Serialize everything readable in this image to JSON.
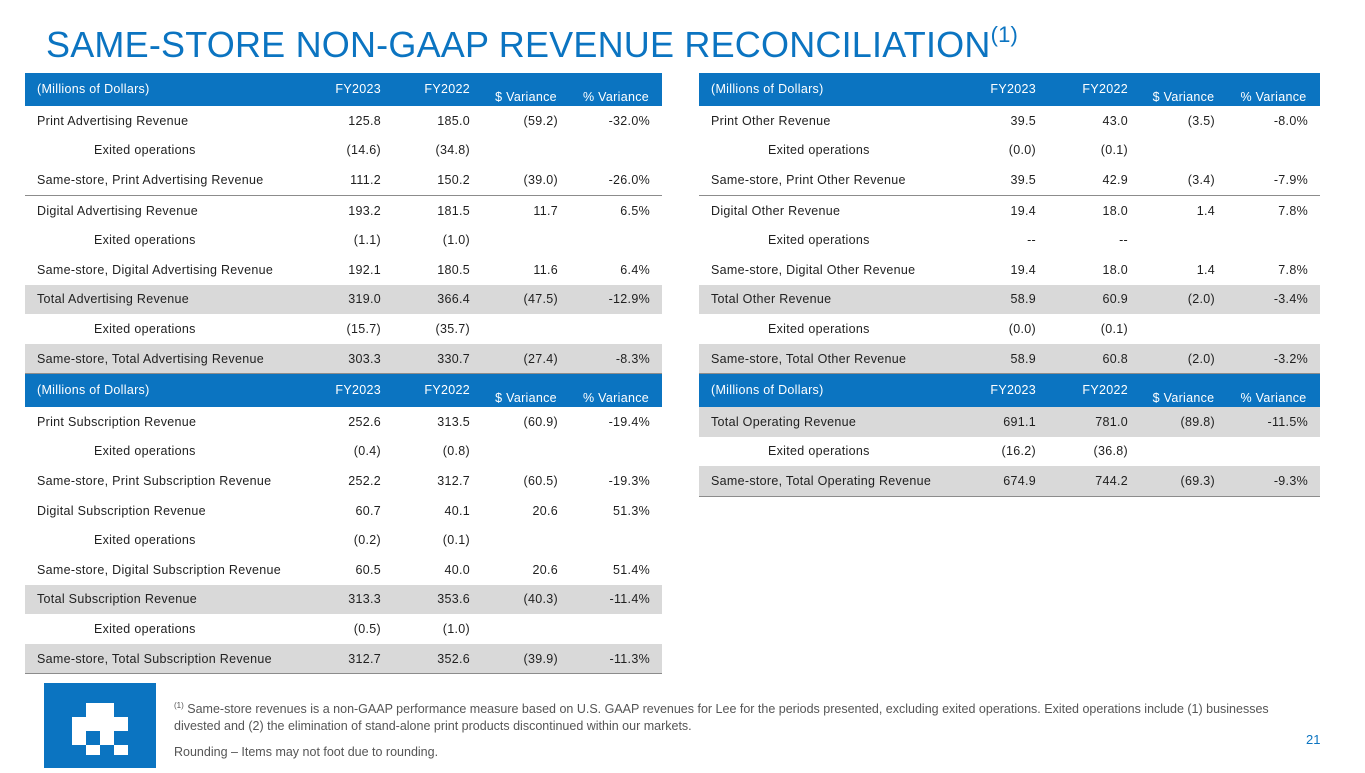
{
  "title": {
    "text": "SAME-STORE NON-GAAP REVENUE RECONCILIATION",
    "footnote_ref": "(1)"
  },
  "headers": {
    "label": "(Millions of Dollars)",
    "fy2023": "FY2023",
    "fy2022": "FY2022",
    "dollar_var": "$ Variance",
    "pct_var": "% Variance"
  },
  "advertising": [
    {
      "label": "Print Advertising Revenue",
      "fy2023": "125.8",
      "fy2022": "185.0",
      "dvar": "(59.2)",
      "pvar": "-32.0%"
    },
    {
      "label": "Exited operations",
      "fy2023": "(14.6)",
      "fy2022": "(34.8)",
      "dvar": "",
      "pvar": ""
    },
    {
      "label": "Same-store, Print Advertising Revenue",
      "fy2023": "111.2",
      "fy2022": "150.2",
      "dvar": "(39.0)",
      "pvar": "-26.0%"
    },
    {
      "label": "Digital Advertising Revenue",
      "fy2023": "193.2",
      "fy2022": "181.5",
      "dvar": "11.7",
      "pvar": "6.5%"
    },
    {
      "label": "Exited operations",
      "fy2023": "(1.1)",
      "fy2022": "(1.0)",
      "dvar": "",
      "pvar": ""
    },
    {
      "label": "Same-store, Digital Advertising Revenue",
      "fy2023": "192.1",
      "fy2022": "180.5",
      "dvar": "11.6",
      "pvar": "6.4%"
    },
    {
      "label": "Total Advertising Revenue",
      "fy2023": "319.0",
      "fy2022": "366.4",
      "dvar": "(47.5)",
      "pvar": "-12.9%"
    },
    {
      "label": "Exited operations",
      "fy2023": "(15.7)",
      "fy2022": "(35.7)",
      "dvar": "",
      "pvar": ""
    },
    {
      "label": "Same-store, Total Advertising Revenue",
      "fy2023": "303.3",
      "fy2022": "330.7",
      "dvar": "(27.4)",
      "pvar": "-8.3%"
    }
  ],
  "subscription": [
    {
      "label": "Print Subscription Revenue",
      "fy2023": "252.6",
      "fy2022": "313.5",
      "dvar": "(60.9)",
      "pvar": "-19.4%"
    },
    {
      "label": "Exited operations",
      "fy2023": "(0.4)",
      "fy2022": "(0.8)",
      "dvar": "",
      "pvar": ""
    },
    {
      "label": "Same-store, Print Subscription Revenue",
      "fy2023": "252.2",
      "fy2022": "312.7",
      "dvar": "(60.5)",
      "pvar": "-19.3%"
    },
    {
      "label": "Digital Subscription Revenue",
      "fy2023": "60.7",
      "fy2022": "40.1",
      "dvar": "20.6",
      "pvar": "51.3%"
    },
    {
      "label": "Exited operations",
      "fy2023": "(0.2)",
      "fy2022": "(0.1)",
      "dvar": "",
      "pvar": ""
    },
    {
      "label": "Same-store, Digital Subscription Revenue",
      "fy2023": "60.5",
      "fy2022": "40.0",
      "dvar": "20.6",
      "pvar": "51.4%"
    },
    {
      "label": "Total Subscription Revenue",
      "fy2023": "313.3",
      "fy2022": "353.6",
      "dvar": "(40.3)",
      "pvar": "-11.4%"
    },
    {
      "label": "Exited operations",
      "fy2023": "(0.5)",
      "fy2022": "(1.0)",
      "dvar": "",
      "pvar": ""
    },
    {
      "label": "Same-store, Total Subscription Revenue",
      "fy2023": "312.7",
      "fy2022": "352.6",
      "dvar": "(39.9)",
      "pvar": "-11.3%"
    }
  ],
  "other": [
    {
      "label": "Print Other Revenue",
      "fy2023": "39.5",
      "fy2022": "43.0",
      "dvar": "(3.5)",
      "pvar": "-8.0%"
    },
    {
      "label": "Exited operations",
      "fy2023": "(0.0)",
      "fy2022": "(0.1)",
      "dvar": "",
      "pvar": ""
    },
    {
      "label": "Same-store, Print Other Revenue",
      "fy2023": "39.5",
      "fy2022": "42.9",
      "dvar": "(3.4)",
      "pvar": "-7.9%"
    },
    {
      "label": "Digital Other Revenue",
      "fy2023": "19.4",
      "fy2022": "18.0",
      "dvar": "1.4",
      "pvar": "7.8%"
    },
    {
      "label": "Exited operations",
      "fy2023": "--",
      "fy2022": "--",
      "dvar": "",
      "pvar": ""
    },
    {
      "label": "Same-store, Digital Other Revenue",
      "fy2023": "19.4",
      "fy2022": "18.0",
      "dvar": "1.4",
      "pvar": "7.8%"
    },
    {
      "label": "Total Other Revenue",
      "fy2023": "58.9",
      "fy2022": "60.9",
      "dvar": "(2.0)",
      "pvar": "-3.4%"
    },
    {
      "label": "Exited operations",
      "fy2023": "(0.0)",
      "fy2022": "(0.1)",
      "dvar": "",
      "pvar": ""
    },
    {
      "label": "Same-store, Total Other Revenue",
      "fy2023": "58.9",
      "fy2022": "60.8",
      "dvar": "(2.0)",
      "pvar": "-3.2%"
    }
  ],
  "operating": [
    {
      "label": "Total Operating Revenue",
      "fy2023": "691.1",
      "fy2022": "781.0",
      "dvar": "(89.8)",
      "pvar": "-11.5%"
    },
    {
      "label": "Exited operations",
      "fy2023": "(16.2)",
      "fy2022": "(36.8)",
      "dvar": "",
      "pvar": ""
    },
    {
      "label": "Same-store, Total Operating Revenue",
      "fy2023": "674.9",
      "fy2022": "744.2",
      "dvar": "(69.3)",
      "pvar": "-9.3%"
    }
  ],
  "footnote": {
    "marker": "(1)",
    "text": "Same-store revenues is a non-GAAP performance measure based on U.S. GAAP revenues for Lee for the periods presented, excluding exited operations. Exited operations include (1) businesses divested and (2) the elimination of stand-alone print products discontinued within our markets.",
    "rounding": "Rounding – Items may not foot due to rounding."
  },
  "page_number": "21",
  "colors": {
    "accent": "#0b74c1",
    "shade": "#d9d9d9"
  }
}
